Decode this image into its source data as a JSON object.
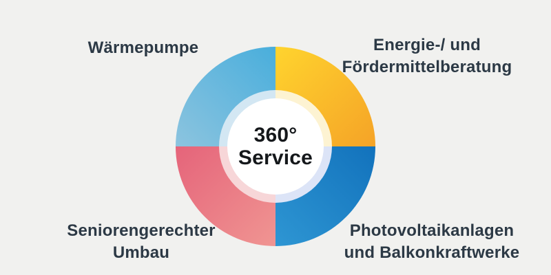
{
  "canvas": {
    "background": "#F1F1EF",
    "label_text_color": "#2C3945"
  },
  "donut": {
    "center_line1": "360°",
    "center_line2": "Service",
    "center_text_color": "#15181b",
    "segments": [
      {
        "name": "waermepumpe",
        "position": "top-left",
        "label": "Wärmepumpe",
        "gradient": [
          "#49AEDC",
          "#8CC4DF"
        ],
        "tint": "#D3E7F3"
      },
      {
        "name": "energie-und-foerdermittelberatung",
        "position": "top-right",
        "label": "Energie-/ und Fördermittelberatung",
        "gradient": [
          "#FFD42E",
          "#F5A327"
        ],
        "tint": "#FDF3D2"
      },
      {
        "name": "photovoltaikanlagen-und-balkonkraftwerke",
        "position": "bottom-right",
        "label": "Photovoltaikanlagen und Balkonkraftwerke",
        "gradient": [
          "#1272BC",
          "#2E96D3"
        ],
        "tint": "#DCE4F7"
      },
      {
        "name": "seniorengerechter-umbau",
        "position": "bottom-left",
        "label": "Seniorengerechter Umbau",
        "gradient": [
          "#E5647A",
          "#F09592"
        ],
        "tint": "#F7D6D8"
      }
    ]
  },
  "labels": {
    "top_left": {
      "line1": "Wärmepumpe"
    },
    "top_right": {
      "line1": "Energie-/ und",
      "line2": "Fördermittelberatung"
    },
    "bottom_left": {
      "line1": "Seniorengerechter",
      "line2": "Umbau"
    },
    "bottom_right": {
      "line1": "Photovoltaikanlagen",
      "line2": "und Balkonkraftwerke"
    }
  }
}
